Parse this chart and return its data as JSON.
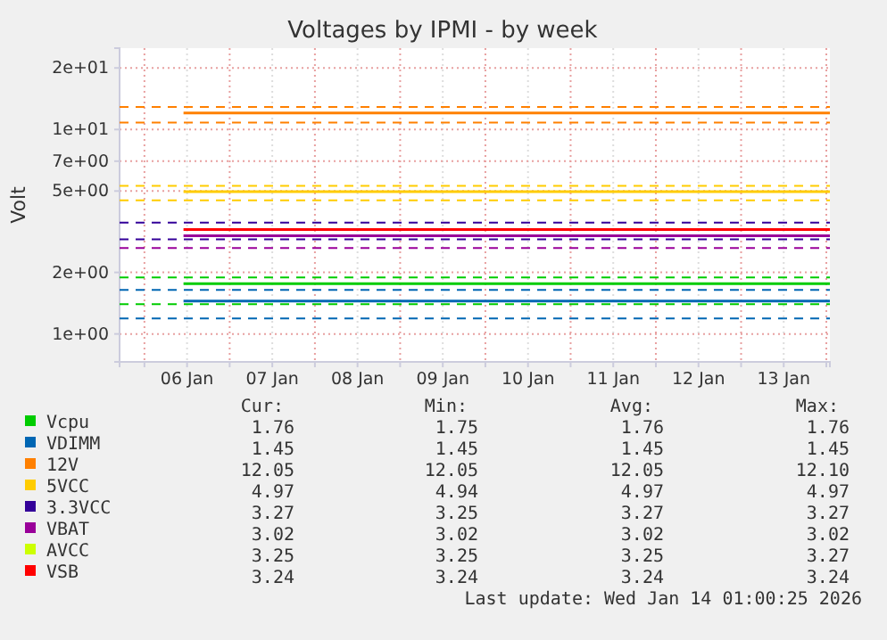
{
  "chart_data": {
    "type": "line",
    "title": "Voltages by IPMI - by week",
    "ylabel": "Volt",
    "log": true,
    "grid": true,
    "legend": "bottom",
    "line_style": "solid",
    "marker": "none",
    "x": [
      "2026-01-06T11:00",
      "2026-01-14T01:00"
    ],
    "xlim": [
      "2026-01-05T17:00",
      "2026-01-14T01:00"
    ],
    "xticks": [
      {
        "value": "2026-01-06T00:00",
        "label": null
      },
      {
        "value": "2026-01-06T12:00",
        "label": "06 Jan"
      },
      {
        "value": "2026-01-07T00:00",
        "label": null
      },
      {
        "value": "2026-01-07T12:00",
        "label": "07 Jan"
      },
      {
        "value": "2026-01-08T00:00",
        "label": null
      },
      {
        "value": "2026-01-08T12:00",
        "label": "08 Jan"
      },
      {
        "value": "2026-01-09T00:00",
        "label": null
      },
      {
        "value": "2026-01-09T12:00",
        "label": "09 Jan"
      },
      {
        "value": "2026-01-10T00:00",
        "label": null
      },
      {
        "value": "2026-01-10T12:00",
        "label": "10 Jan"
      },
      {
        "value": "2026-01-11T00:00",
        "label": null
      },
      {
        "value": "2026-01-11T12:00",
        "label": "11 Jan"
      },
      {
        "value": "2026-01-12T00:00",
        "label": null
      },
      {
        "value": "2026-01-12T12:00",
        "label": "12 Jan"
      },
      {
        "value": "2026-01-13T00:00",
        "label": null
      },
      {
        "value": "2026-01-13T12:00",
        "label": "13 Jan"
      },
      {
        "value": "2026-01-14T00:00",
        "label": null
      }
    ],
    "ylim": [
      0.73,
      25
    ],
    "yticks": [
      {
        "value": 1,
        "label": "1e+00"
      },
      {
        "value": 2,
        "label": "2e+00"
      },
      {
        "value": 5,
        "label": "5e+00"
      },
      {
        "value": 7,
        "label": "7e+00"
      },
      {
        "value": 10,
        "label": "1e+01"
      },
      {
        "value": 20,
        "label": "2e+01"
      }
    ],
    "series": [
      {
        "name": "Vcpu",
        "color": "#00cc00",
        "values": [
          1.76,
          1.76
        ]
      },
      {
        "name": "VDIMM",
        "color": "#0066b3",
        "values": [
          1.45,
          1.45
        ]
      },
      {
        "name": "12V",
        "color": "#ff8000",
        "values": [
          12.05,
          12.05
        ]
      },
      {
        "name": "5VCC",
        "color": "#ffcc00",
        "values": [
          4.97,
          4.97
        ]
      },
      {
        "name": "3.3VCC",
        "color": "#330099",
        "values": [
          null,
          null
        ]
      },
      {
        "name": "VBAT",
        "color": "#990099",
        "values": [
          3.02,
          3.02
        ]
      },
      {
        "name": "AVCC",
        "color": "#ccff00",
        "values": [
          null,
          null
        ]
      },
      {
        "name": "VSB",
        "color": "#ff0000",
        "values": [
          3.24,
          3.24
        ]
      }
    ],
    "ref_lines": [
      {
        "axis": "y",
        "value": 12.9,
        "color": "#ff8000",
        "line_style": "dashed"
      },
      {
        "axis": "y",
        "value": 10.8,
        "color": "#ff8000",
        "line_style": "dashed"
      },
      {
        "axis": "y",
        "value": 5.3,
        "color": "#ffcc00",
        "line_style": "dashed"
      },
      {
        "axis": "y",
        "value": 4.5,
        "color": "#ffcc00",
        "line_style": "dashed"
      },
      {
        "axis": "y",
        "value": 3.5,
        "color": "#330099",
        "line_style": "dashed"
      },
      {
        "axis": "y",
        "value": 2.9,
        "color": "#330099",
        "line_style": "dashed"
      },
      {
        "axis": "y",
        "value": 2.63,
        "color": "#990099",
        "line_style": "dashed"
      },
      {
        "axis": "y",
        "value": 1.89,
        "color": "#00cc00",
        "line_style": "dashed"
      },
      {
        "axis": "y",
        "value": 1.4,
        "color": "#00cc00",
        "line_style": "dashed"
      },
      {
        "axis": "y",
        "value": 1.64,
        "color": "#0066b3",
        "line_style": "dashed"
      },
      {
        "axis": "y",
        "value": 1.19,
        "color": "#0066b3",
        "line_style": "dashed"
      }
    ],
    "annotations": [
      "Cur:",
      "Min:",
      "Avg:",
      "Max:",
      "1.76",
      "1.75",
      "1.76",
      "1.76",
      "1.45",
      "1.45",
      "1.45",
      "1.45",
      "12.05",
      "12.05",
      "12.05",
      "12.10",
      "4.97",
      "4.94",
      "4.97",
      "4.97",
      "3.27",
      "3.25",
      "3.27",
      "3.27",
      "3.02",
      "3.02",
      "3.02",
      "3.02",
      "3.25",
      "3.25",
      "3.25",
      "3.27",
      "3.24",
      "3.24",
      "3.24",
      "3.24",
      "Last update: Wed Jan 14 01:00:25 2026"
    ]
  }
}
